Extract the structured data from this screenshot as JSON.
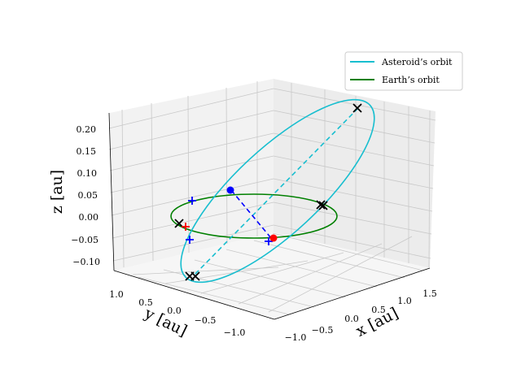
{
  "chart_data": {
    "type": "line",
    "projection": "3d",
    "xlabel": "x [au]",
    "ylabel": "y [au]",
    "zlabel": "z [au]",
    "x_ticks": [
      "−1.0",
      "−0.5",
      "0.0",
      "0.5",
      "1.0",
      "1.5"
    ],
    "y_ticks": [
      "1.0",
      "0.5",
      "0.0",
      "−0.5",
      "−1.0"
    ],
    "z_ticks": [
      "0.20",
      "0.15",
      "0.10",
      "0.05",
      "0.00",
      "−0.05",
      "−0.10"
    ],
    "xlim": [
      -1.1,
      1.6
    ],
    "ylim": [
      -1.2,
      1.1
    ],
    "zlim": [
      -0.12,
      0.22
    ],
    "grid": true,
    "legend_position": "upper right",
    "series": [
      {
        "name": "Asteroid’s orbit",
        "color": "#17becf",
        "style": "solid"
      },
      {
        "name": "Earth’s orbit",
        "color": "#008000",
        "style": "solid"
      }
    ],
    "colors": {
      "asteroid": "#17becf",
      "earth": "#008000",
      "line_of_nodes": "#17becf",
      "node_line": "#0000ff",
      "sun": "#ff0000",
      "body": "#0000ff",
      "x_markers": "#000000",
      "plus_markers": "#0000ff",
      "red_plus": "#ff0000"
    }
  }
}
